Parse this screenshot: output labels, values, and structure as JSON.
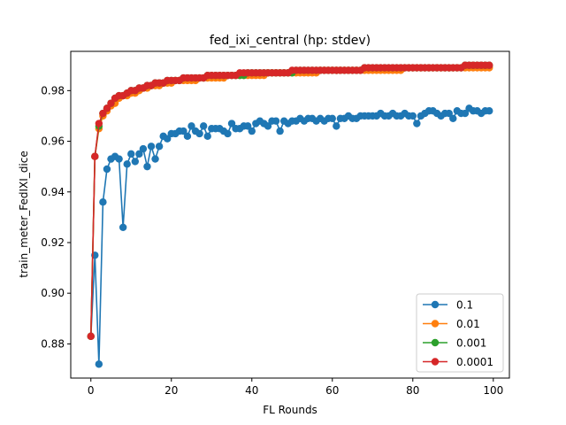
{
  "chart_data": {
    "type": "line",
    "title": "fed_ixi_central (hp: stdev)",
    "xlabel": "FL Rounds",
    "ylabel": "train_meter_FedIXI_dice",
    "xlim": [
      -5,
      104
    ],
    "ylim": [
      0.8665,
      0.9955
    ],
    "xticks": [
      0,
      20,
      40,
      60,
      80,
      100
    ],
    "yticks": [
      0.88,
      0.9,
      0.92,
      0.94,
      0.96,
      0.98
    ],
    "ytick_labels": [
      "0.88",
      "0.90",
      "0.92",
      "0.94",
      "0.96",
      "0.98"
    ],
    "grid": false,
    "legend": "lower-right",
    "marker": "circle",
    "series": [
      {
        "name": "0.1",
        "color": "#1f77b4",
        "x": [
          0,
          1,
          2,
          3,
          4,
          5,
          6,
          7,
          8,
          9,
          10,
          11,
          12,
          13,
          14,
          15,
          16,
          17,
          18,
          19,
          20,
          21,
          22,
          23,
          24,
          25,
          26,
          27,
          28,
          29,
          30,
          31,
          32,
          33,
          34,
          35,
          36,
          37,
          38,
          39,
          40,
          41,
          42,
          43,
          44,
          45,
          46,
          47,
          48,
          49,
          50,
          51,
          52,
          53,
          54,
          55,
          56,
          57,
          58,
          59,
          60,
          61,
          62,
          63,
          64,
          65,
          66,
          67,
          68,
          69,
          70,
          71,
          72,
          73,
          74,
          75,
          76,
          77,
          78,
          79,
          80,
          81,
          82,
          83,
          84,
          85,
          86,
          87,
          88,
          89,
          90,
          91,
          92,
          93,
          94,
          95,
          96,
          97,
          98,
          99
        ],
        "y": [
          0.883,
          0.915,
          0.872,
          0.936,
          0.949,
          0.953,
          0.954,
          0.953,
          0.926,
          0.951,
          0.955,
          0.952,
          0.955,
          0.957,
          0.95,
          0.958,
          0.953,
          0.958,
          0.962,
          0.961,
          0.963,
          0.963,
          0.964,
          0.964,
          0.962,
          0.966,
          0.964,
          0.963,
          0.966,
          0.962,
          0.965,
          0.965,
          0.965,
          0.964,
          0.963,
          0.967,
          0.965,
          0.965,
          0.966,
          0.966,
          0.964,
          0.967,
          0.968,
          0.967,
          0.966,
          0.968,
          0.968,
          0.964,
          0.968,
          0.967,
          0.968,
          0.968,
          0.969,
          0.968,
          0.969,
          0.969,
          0.968,
          0.969,
          0.968,
          0.969,
          0.969,
          0.966,
          0.969,
          0.969,
          0.97,
          0.969,
          0.969,
          0.97,
          0.97,
          0.97,
          0.97,
          0.97,
          0.971,
          0.97,
          0.97,
          0.971,
          0.97,
          0.97,
          0.971,
          0.97,
          0.97,
          0.967,
          0.97,
          0.971,
          0.972,
          0.972,
          0.971,
          0.97,
          0.971,
          0.971,
          0.969,
          0.972,
          0.971,
          0.971,
          0.973,
          0.972,
          0.972,
          0.971,
          0.972,
          0.972
        ]
      },
      {
        "name": "0.01",
        "color": "#ff7f0e",
        "x": [
          0,
          1,
          2,
          3,
          4,
          5,
          6,
          7,
          8,
          9,
          10,
          11,
          12,
          13,
          14,
          15,
          16,
          17,
          18,
          19,
          20,
          21,
          22,
          23,
          24,
          25,
          26,
          27,
          28,
          29,
          30,
          31,
          32,
          33,
          34,
          35,
          36,
          37,
          38,
          39,
          40,
          41,
          42,
          43,
          44,
          45,
          46,
          47,
          48,
          49,
          50,
          51,
          52,
          53,
          54,
          55,
          56,
          57,
          58,
          59,
          60,
          61,
          62,
          63,
          64,
          65,
          66,
          67,
          68,
          69,
          70,
          71,
          72,
          73,
          74,
          75,
          76,
          77,
          78,
          79,
          80,
          81,
          82,
          83,
          84,
          85,
          86,
          87,
          88,
          89,
          90,
          91,
          92,
          93,
          94,
          95,
          96,
          97,
          98,
          99
        ],
        "y": [
          0.883,
          0.954,
          0.965,
          0.97,
          0.972,
          0.974,
          0.975,
          0.977,
          0.978,
          0.978,
          0.979,
          0.979,
          0.98,
          0.981,
          0.981,
          0.982,
          0.982,
          0.982,
          0.983,
          0.983,
          0.983,
          0.984,
          0.984,
          0.984,
          0.984,
          0.984,
          0.984,
          0.985,
          0.985,
          0.985,
          0.985,
          0.985,
          0.985,
          0.985,
          0.986,
          0.986,
          0.986,
          0.986,
          0.986,
          0.986,
          0.986,
          0.986,
          0.986,
          0.986,
          0.987,
          0.987,
          0.987,
          0.987,
          0.987,
          0.987,
          0.987,
          0.987,
          0.987,
          0.987,
          0.987,
          0.987,
          0.987,
          0.988,
          0.988,
          0.988,
          0.988,
          0.988,
          0.988,
          0.988,
          0.988,
          0.988,
          0.988,
          0.988,
          0.988,
          0.988,
          0.988,
          0.988,
          0.988,
          0.988,
          0.988,
          0.988,
          0.988,
          0.988,
          0.989,
          0.989,
          0.989,
          0.989,
          0.989,
          0.989,
          0.989,
          0.989,
          0.989,
          0.989,
          0.989,
          0.989,
          0.989,
          0.989,
          0.989,
          0.989,
          0.989,
          0.989,
          0.989,
          0.989,
          0.989,
          0.989
        ]
      },
      {
        "name": "0.001",
        "color": "#2ca02c",
        "x": [
          0,
          1,
          2,
          3,
          4,
          5,
          6,
          7,
          8,
          9,
          10,
          11,
          12,
          13,
          14,
          15,
          16,
          17,
          18,
          19,
          20,
          21,
          22,
          23,
          24,
          25,
          26,
          27,
          28,
          29,
          30,
          31,
          32,
          33,
          34,
          35,
          36,
          37,
          38,
          39,
          40,
          41,
          42,
          43,
          44,
          45,
          46,
          47,
          48,
          49,
          50,
          51,
          52,
          53,
          54,
          55,
          56,
          57,
          58,
          59,
          60,
          61,
          62,
          63,
          64,
          65,
          66,
          67,
          68,
          69,
          70,
          71,
          72,
          73,
          74,
          75,
          76,
          77,
          78,
          79,
          80,
          81,
          82,
          83,
          84,
          85,
          86,
          87,
          88,
          89,
          90,
          91,
          92,
          93,
          94,
          95,
          96,
          97,
          98,
          99
        ],
        "y": [
          0.883,
          0.954,
          0.966,
          0.971,
          0.973,
          0.975,
          0.977,
          0.978,
          0.978,
          0.979,
          0.98,
          0.98,
          0.981,
          0.981,
          0.982,
          0.982,
          0.983,
          0.983,
          0.983,
          0.984,
          0.984,
          0.984,
          0.984,
          0.985,
          0.985,
          0.985,
          0.985,
          0.985,
          0.985,
          0.986,
          0.986,
          0.986,
          0.986,
          0.986,
          0.986,
          0.986,
          0.986,
          0.986,
          0.986,
          0.987,
          0.987,
          0.987,
          0.987,
          0.987,
          0.987,
          0.987,
          0.987,
          0.987,
          0.987,
          0.987,
          0.987,
          0.988,
          0.988,
          0.988,
          0.988,
          0.988,
          0.988,
          0.988,
          0.988,
          0.988,
          0.988,
          0.988,
          0.988,
          0.988,
          0.988,
          0.988,
          0.988,
          0.988,
          0.989,
          0.989,
          0.989,
          0.989,
          0.989,
          0.989,
          0.989,
          0.989,
          0.989,
          0.989,
          0.989,
          0.989,
          0.989,
          0.989,
          0.989,
          0.989,
          0.989,
          0.989,
          0.989,
          0.989,
          0.989,
          0.989,
          0.989,
          0.989,
          0.989,
          0.99,
          0.99,
          0.99,
          0.99,
          0.99,
          0.99,
          0.99
        ]
      },
      {
        "name": "0.0001",
        "color": "#d62728",
        "x": [
          0,
          1,
          2,
          3,
          4,
          5,
          6,
          7,
          8,
          9,
          10,
          11,
          12,
          13,
          14,
          15,
          16,
          17,
          18,
          19,
          20,
          21,
          22,
          23,
          24,
          25,
          26,
          27,
          28,
          29,
          30,
          31,
          32,
          33,
          34,
          35,
          36,
          37,
          38,
          39,
          40,
          41,
          42,
          43,
          44,
          45,
          46,
          47,
          48,
          49,
          50,
          51,
          52,
          53,
          54,
          55,
          56,
          57,
          58,
          59,
          60,
          61,
          62,
          63,
          64,
          65,
          66,
          67,
          68,
          69,
          70,
          71,
          72,
          73,
          74,
          75,
          76,
          77,
          78,
          79,
          80,
          81,
          82,
          83,
          84,
          85,
          86,
          87,
          88,
          89,
          90,
          91,
          92,
          93,
          94,
          95,
          96,
          97,
          98,
          99
        ],
        "y": [
          0.883,
          0.954,
          0.967,
          0.971,
          0.973,
          0.975,
          0.977,
          0.978,
          0.978,
          0.979,
          0.98,
          0.98,
          0.981,
          0.981,
          0.982,
          0.982,
          0.983,
          0.983,
          0.983,
          0.984,
          0.984,
          0.984,
          0.984,
          0.985,
          0.985,
          0.985,
          0.985,
          0.985,
          0.985,
          0.986,
          0.986,
          0.986,
          0.986,
          0.986,
          0.986,
          0.986,
          0.986,
          0.987,
          0.987,
          0.987,
          0.987,
          0.987,
          0.987,
          0.987,
          0.987,
          0.987,
          0.987,
          0.987,
          0.987,
          0.987,
          0.988,
          0.988,
          0.988,
          0.988,
          0.988,
          0.988,
          0.988,
          0.988,
          0.988,
          0.988,
          0.988,
          0.988,
          0.988,
          0.988,
          0.988,
          0.988,
          0.988,
          0.988,
          0.989,
          0.989,
          0.989,
          0.989,
          0.989,
          0.989,
          0.989,
          0.989,
          0.989,
          0.989,
          0.989,
          0.989,
          0.989,
          0.989,
          0.989,
          0.989,
          0.989,
          0.989,
          0.989,
          0.989,
          0.989,
          0.989,
          0.989,
          0.989,
          0.989,
          0.99,
          0.99,
          0.99,
          0.99,
          0.99,
          0.99,
          0.99
        ]
      }
    ]
  }
}
